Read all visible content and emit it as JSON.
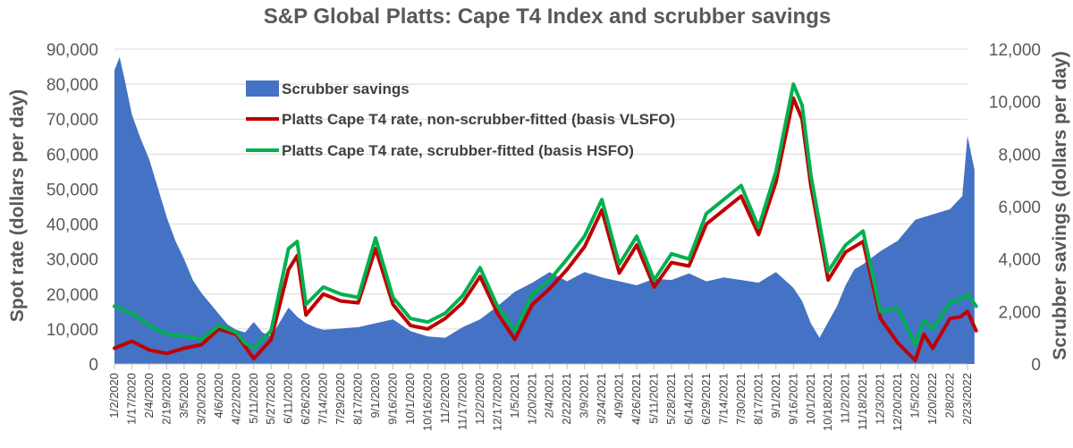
{
  "chart_data": {
    "type": "line",
    "title": "S&P Global Platts: Cape T4 Index and scrubber savings",
    "ylabel": "Spot rate (dollars per day)",
    "y2label": "Scrubber savings (dollars per day)",
    "xlabel": "",
    "ylim": [
      0,
      90000
    ],
    "y2lim": [
      0,
      12000
    ],
    "yticks": [
      "0",
      "10,000",
      "20,000",
      "30,000",
      "40,000",
      "50,000",
      "60,000",
      "70,000",
      "80,000",
      "90,000"
    ],
    "y2ticks": [
      "0",
      "2,000",
      "4,000",
      "6,000",
      "8,000",
      "10,000",
      "12,000"
    ],
    "legend_position": "top-left",
    "grid": true,
    "x_tick_labels": [
      "1/2/2020",
      "1/17/2020",
      "2/4/2020",
      "2/19/2020",
      "3/5/2020",
      "3/20/2020",
      "4/6/2020",
      "4/22/2020",
      "5/11/2020",
      "5/27/2020",
      "6/11/2020",
      "6/26/2020",
      "7/14/2020",
      "7/29/2020",
      "8/17/2020",
      "9/1/2020",
      "9/16/2020",
      "10/1/2020",
      "10/16/2020",
      "11/2/2020",
      "11/17/2020",
      "12/2/2020",
      "12/17/2020",
      "1/5/2021",
      "1/20/2021",
      "2/4/2021",
      "2/22/2021",
      "3/9/2021",
      "3/24/2021",
      "4/9/2021",
      "4/26/2021",
      "5/11/2021",
      "5/28/2021",
      "6/14/2021",
      "6/29/2021",
      "7/14/2021",
      "7/30/2021",
      "8/17/2021",
      "9/1/2021",
      "9/16/2021",
      "10/1/2021",
      "10/18/2021",
      "11/2/2021",
      "11/18/2021",
      "12/3/2021",
      "12/20/2021",
      "1/5/2022",
      "1/20/2022",
      "2/8/2022",
      "2/23/2022"
    ],
    "series": [
      {
        "name": "Scrubber savings",
        "type": "area",
        "axis": "right",
        "color": "#4472c4",
        "x": [
          0,
          0.3,
          0.6,
          1,
          1.5,
          2,
          2.5,
          3,
          3.5,
          4,
          4.5,
          5,
          5.5,
          6,
          6.5,
          7,
          7.5,
          8,
          8.5,
          9,
          9.5,
          10,
          10.5,
          11,
          11.5,
          12,
          13,
          14,
          15,
          16,
          17,
          18,
          19,
          20,
          21,
          22,
          23,
          24,
          25,
          26,
          27,
          28,
          29,
          30,
          31,
          32,
          33,
          34,
          35,
          36,
          37,
          38,
          39,
          39.5,
          40,
          40.5,
          41,
          41.5,
          42,
          42.5,
          43,
          44,
          45,
          46,
          47,
          48,
          48.7,
          49,
          49.4
        ],
        "values": [
          11200,
          11700,
          10800,
          9500,
          8600,
          7800,
          6700,
          5600,
          4700,
          4000,
          3200,
          2700,
          2300,
          1900,
          1500,
          1300,
          1200,
          1600,
          1200,
          1050,
          1600,
          2150,
          1800,
          1550,
          1400,
          1300,
          1350,
          1400,
          1550,
          1700,
          1250,
          1050,
          1000,
          1400,
          1700,
          2200,
          2750,
          3100,
          3500,
          3150,
          3500,
          3300,
          3150,
          3000,
          3250,
          3200,
          3450,
          3150,
          3300,
          3200,
          3100,
          3500,
          2900,
          2400,
          1550,
          1000,
          1600,
          2200,
          3000,
          3600,
          3800,
          4300,
          4700,
          5500,
          5700,
          5900,
          6400,
          8700,
          7400
        ]
      },
      {
        "name": "Platts Cape T4 rate, non-scrubber-fitted (basis VLSFO)",
        "type": "line",
        "axis": "left",
        "color": "#c00000",
        "x": [
          0,
          1,
          2,
          3,
          4,
          5,
          6,
          7,
          7.5,
          8,
          9,
          10,
          10.5,
          11,
          12,
          13,
          14,
          15,
          16,
          17,
          18,
          19,
          20,
          21,
          22,
          23,
          24,
          25,
          26,
          27,
          28,
          29,
          30,
          31,
          32,
          33,
          34,
          35,
          36,
          37,
          38,
          39,
          39.5,
          40,
          41,
          42,
          43,
          44,
          45,
          46,
          46.5,
          47,
          48,
          48.6,
          49,
          49.5
        ],
        "values": [
          4500,
          6500,
          4000,
          3000,
          4500,
          5500,
          10000,
          8500,
          5000,
          1500,
          7000,
          27000,
          31000,
          14000,
          20000,
          18000,
          17500,
          33000,
          17000,
          11000,
          10000,
          13000,
          17500,
          25000,
          14500,
          7000,
          17000,
          21500,
          27000,
          33500,
          44000,
          26000,
          34000,
          22000,
          29000,
          28000,
          40000,
          44000,
          48000,
          37000,
          52000,
          76000,
          70000,
          51000,
          24000,
          32000,
          35000,
          13000,
          6000,
          1000,
          8500,
          4500,
          13000,
          13500,
          15000,
          9500
        ]
      },
      {
        "name": "Platts Cape T4 rate, scrubber-fitted (basis HSFO)",
        "type": "line",
        "axis": "left",
        "color": "#00b050",
        "x": [
          0,
          1,
          2,
          3,
          4,
          5,
          6,
          7,
          7.5,
          8,
          9,
          10,
          10.5,
          11,
          12,
          13,
          14,
          15,
          16,
          17,
          18,
          19,
          20,
          21,
          22,
          23,
          24,
          25,
          26,
          27,
          28,
          29,
          30,
          31,
          32,
          33,
          34,
          35,
          36,
          37,
          38,
          39,
          39.5,
          40,
          41,
          42,
          43,
          44,
          45,
          46,
          46.5,
          47,
          48,
          48.6,
          49,
          49.5
        ],
        "values": [
          16500,
          14500,
          11000,
          8500,
          8000,
          7000,
          11000,
          9000,
          6000,
          4500,
          9500,
          33000,
          35000,
          17000,
          22000,
          20000,
          19000,
          36000,
          19000,
          13000,
          12000,
          14500,
          19500,
          27500,
          16500,
          9500,
          20000,
          24000,
          30000,
          36500,
          47000,
          28500,
          36500,
          24000,
          31500,
          30000,
          43000,
          47000,
          51000,
          39000,
          55000,
          80000,
          74000,
          54000,
          26500,
          34000,
          38000,
          15000,
          16000,
          5500,
          12500,
          10000,
          17500,
          18500,
          20000,
          16500
        ]
      }
    ]
  }
}
